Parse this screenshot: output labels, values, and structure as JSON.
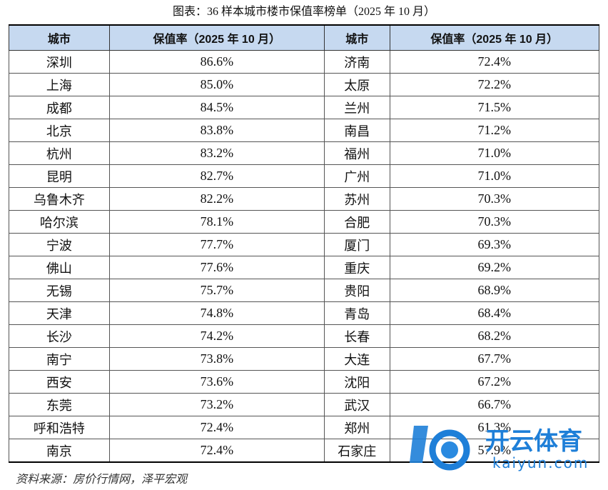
{
  "title": "图表：36 样本城市楼市保值率榜单（2025 年 10 月）",
  "table": {
    "header": [
      "城市",
      "保值率（2025 年 10 月）",
      "城市",
      "保值率（2025 年 10 月）"
    ],
    "rows": [
      [
        "深圳",
        "86.6%",
        "济南",
        "72.4%"
      ],
      [
        "上海",
        "85.0%",
        "太原",
        "72.2%"
      ],
      [
        "成都",
        "84.5%",
        "兰州",
        "71.5%"
      ],
      [
        "北京",
        "83.8%",
        "南昌",
        "71.2%"
      ],
      [
        "杭州",
        "83.2%",
        "福州",
        "71.0%"
      ],
      [
        "昆明",
        "82.7%",
        "广州",
        "71.0%"
      ],
      [
        "乌鲁木齐",
        "82.2%",
        "苏州",
        "70.3%"
      ],
      [
        "哈尔滨",
        "78.1%",
        "合肥",
        "70.3%"
      ],
      [
        "宁波",
        "77.7%",
        "厦门",
        "69.3%"
      ],
      [
        "佛山",
        "77.6%",
        "重庆",
        "69.2%"
      ],
      [
        "无锡",
        "75.7%",
        "贵阳",
        "68.9%"
      ],
      [
        "天津",
        "74.8%",
        "青岛",
        "68.4%"
      ],
      [
        "长沙",
        "74.2%",
        "长春",
        "68.2%"
      ],
      [
        "南宁",
        "73.8%",
        "大连",
        "67.7%"
      ],
      [
        "西安",
        "73.6%",
        "沈阳",
        "67.2%"
      ],
      [
        "东莞",
        "73.2%",
        "武汉",
        "66.7%"
      ],
      [
        "呼和浩特",
        "72.4%",
        "郑州",
        "61.3%"
      ],
      [
        "南京",
        "72.4%",
        "石家庄",
        "57.9%"
      ]
    ]
  },
  "source": "资料来源：房价行情网，泽平宏观",
  "watermark": {
    "brand": "开云体育",
    "url": "kaiyun.com"
  }
}
